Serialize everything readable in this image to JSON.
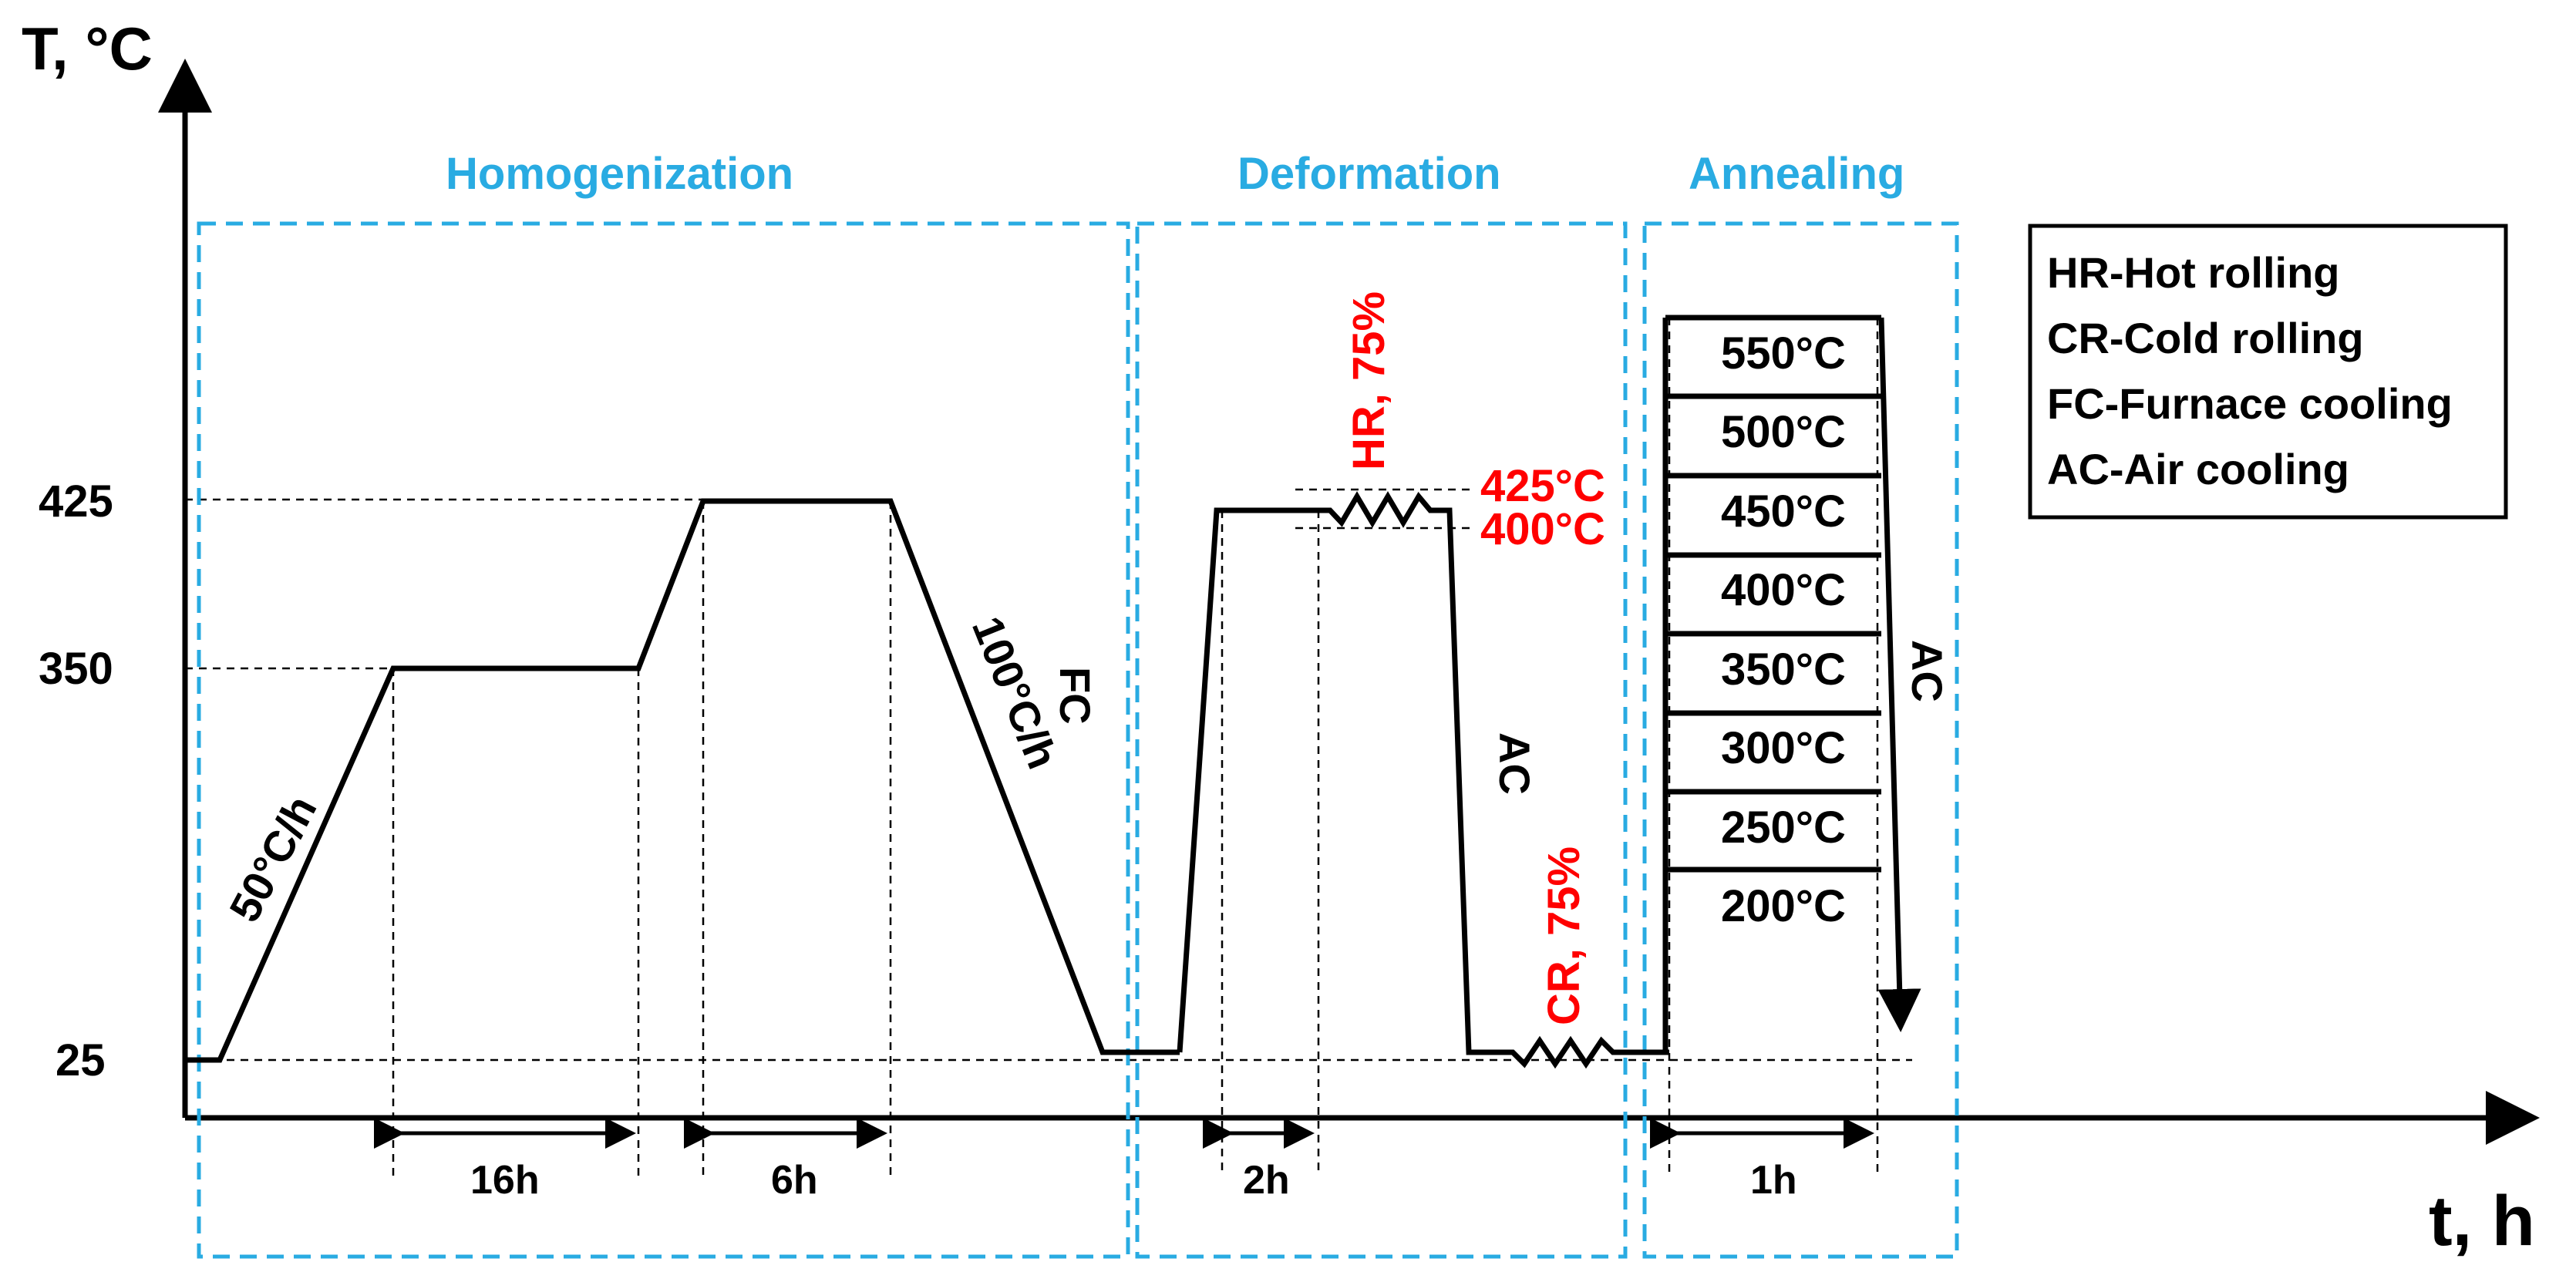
{
  "axes": {
    "y_label": "T, °C",
    "x_label": "t, h",
    "y_ticks": [
      "425",
      "350",
      "25"
    ]
  },
  "sections": {
    "homogenization": "Homogenization",
    "deformation": "Deformation",
    "annealing": "Annealing"
  },
  "durations": {
    "d16": "16h",
    "d6": "6h",
    "d2": "2h",
    "d1": "1h"
  },
  "labels": {
    "heating_rate": "50°C/h",
    "cooling_rate": "100°C/h",
    "fc": "FC",
    "ac_deformation": "AC",
    "ac_annealing": "AC",
    "hr": "HR, 75%",
    "cr": "CR, 75%",
    "t425": "425°C",
    "t400": "400°C"
  },
  "annealing_temperatures": [
    "550°C",
    "500°C",
    "450°C",
    "400°C",
    "350°C",
    "300°C",
    "250°C",
    "200°C"
  ],
  "legend": [
    "HR-Hot rolling",
    "CR-Cold rolling",
    "FC-Furnace cooling",
    "AC-Air cooling"
  ],
  "colors": {
    "section_box": "#29abe2",
    "rolling_label": "#ff0000",
    "line": "#000000"
  }
}
